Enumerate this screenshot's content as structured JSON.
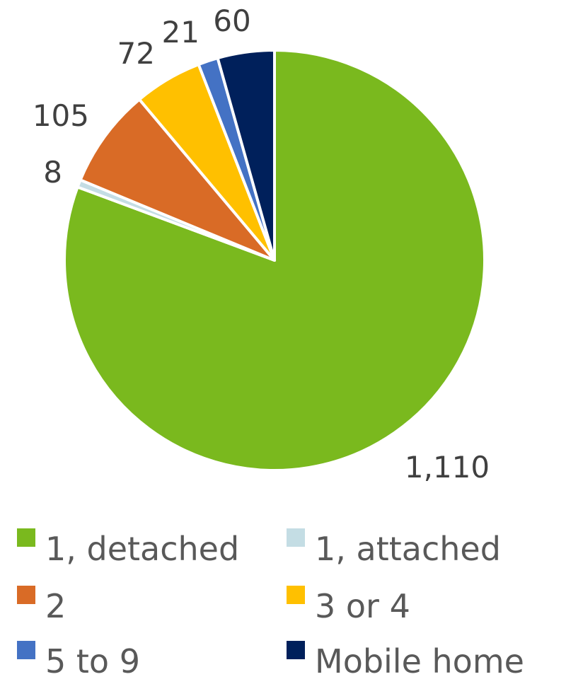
{
  "chart_data": {
    "type": "pie",
    "title": "",
    "slices": [
      {
        "label": "1, detached",
        "value": 1110,
        "value_label": "1,110",
        "color": "#7AB91E"
      },
      {
        "label": "1, attached",
        "value": 8,
        "value_label": "8",
        "color": "#C4DDE4"
      },
      {
        "label": "2",
        "value": 105,
        "value_label": "105",
        "color": "#D96B26"
      },
      {
        "label": "3 or 4",
        "value": 72,
        "value_label": "72",
        "color": "#FFC000"
      },
      {
        "label": "5 to 9",
        "value": 21,
        "value_label": "21",
        "color": "#4472C4"
      },
      {
        "label": "Mobile home",
        "value": 60,
        "value_label": "60",
        "color": "#00205B"
      }
    ],
    "start_angle_deg": 0,
    "direction": "clockwise",
    "legend": {
      "position": "bottom",
      "columns": 2
    }
  }
}
